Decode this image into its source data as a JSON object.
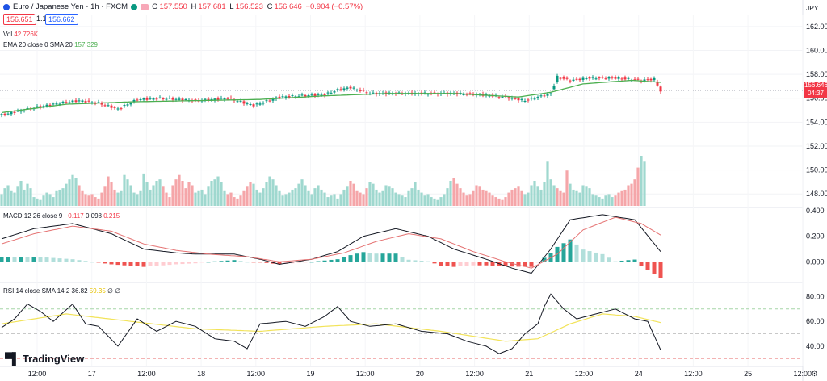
{
  "header": {
    "symbol": "Euro / Japanese Yen · 1h · FXCM",
    "open_label": "O",
    "open": "157.550",
    "high_label": "H",
    "high": "157.681",
    "low_label": "L",
    "low": "156.523",
    "close_label": "C",
    "close": "156.646",
    "change": "−0.904 (−0.57%)",
    "sell_price": "156.651",
    "spread": "1.1",
    "buy_price": "156.662"
  },
  "indicators": {
    "vol_label": "Vol",
    "vol_value": "42.726K",
    "ema_label": "EMA 20 close 0 SMA 20",
    "ema_value": "157.329",
    "macd_label": "MACD 12 26 close 9",
    "macd_v1": "−0.117",
    "macd_v2": "0.098",
    "macd_v3": "0.215",
    "rsi_label": "RSI 14 close SMA 14 2",
    "rsi_v1": "36.82",
    "rsi_v2": "59.35",
    "rsi_v3": "∅ ∅"
  },
  "currency": "JPY",
  "last_price_box": {
    "price": "156.646",
    "countdown": "04:37"
  },
  "brand": "TradingView",
  "colors": {
    "up": "#089981",
    "down": "#f23645",
    "ema": "#4caf50",
    "macd": "#131722",
    "signal": "#e57373",
    "rsi": "#131722",
    "rsi_ma": "#f2e35a"
  },
  "chart_data": {
    "type": "candlestick",
    "title": "Euro / Japanese Yen · 1h · FXCM",
    "price_axis": {
      "ticks": [
        162,
        160,
        158,
        156,
        154,
        152,
        150,
        148
      ],
      "tick_labels": [
        "162.000",
        "160.000",
        "158.000",
        "156.000",
        "154.000",
        "152.000",
        "150.000",
        "148.000"
      ],
      "range": [
        147,
        163
      ]
    },
    "time_axis": {
      "labels": [
        "12:00",
        "17",
        "12:00",
        "18",
        "12:00",
        "19",
        "12:00",
        "20",
        "12:00",
        "21",
        "12:00",
        "24",
        "12:00",
        "25",
        "12:00"
      ]
    },
    "price_anchors": [
      [
        0,
        154.6
      ],
      [
        8,
        155.1
      ],
      [
        18,
        155.6
      ],
      [
        24,
        155.8
      ],
      [
        30,
        155.6
      ],
      [
        36,
        155.1
      ],
      [
        42,
        155.9
      ],
      [
        50,
        156.0
      ],
      [
        60,
        155.8
      ],
      [
        70,
        156.0
      ],
      [
        78,
        155.4
      ],
      [
        86,
        156.1
      ],
      [
        92,
        156.2
      ],
      [
        100,
        156.3
      ],
      [
        104,
        156.7
      ],
      [
        108,
        156.9
      ],
      [
        114,
        156.4
      ],
      [
        126,
        156.4
      ],
      [
        140,
        156.4
      ],
      [
        148,
        156.3
      ],
      [
        156,
        156.1
      ],
      [
        162,
        155.8
      ],
      [
        166,
        156.1
      ],
      [
        170,
        156.4
      ],
      [
        172,
        157.8
      ],
      [
        176,
        157.5
      ],
      [
        182,
        157.7
      ],
      [
        190,
        157.7
      ],
      [
        198,
        157.5
      ],
      [
        202,
        157.6
      ],
      [
        204,
        156.6
      ]
    ],
    "ema20": [
      [
        0,
        154.8
      ],
      [
        20,
        155.5
      ],
      [
        40,
        155.7
      ],
      [
        60,
        155.8
      ],
      [
        80,
        155.9
      ],
      [
        100,
        156.2
      ],
      [
        120,
        156.4
      ],
      [
        140,
        156.4
      ],
      [
        160,
        156.1
      ],
      [
        170,
        156.5
      ],
      [
        180,
        157.2
      ],
      [
        195,
        157.5
      ],
      [
        204,
        157.33
      ]
    ],
    "volume": [
      8,
      12,
      14,
      10,
      9,
      13,
      17,
      11,
      15,
      12,
      6,
      5,
      4,
      7,
      9,
      8,
      6,
      10,
      11,
      12,
      15,
      18,
      21,
      19,
      14,
      10,
      8,
      7,
      8,
      6,
      5,
      9,
      13,
      20,
      16,
      11,
      9,
      10,
      21,
      18,
      14,
      9,
      8,
      10,
      22,
      16,
      11,
      14,
      17,
      18,
      13,
      9,
      6,
      14,
      18,
      21,
      17,
      12,
      16,
      14,
      9,
      10,
      11,
      8,
      13,
      17,
      18,
      20,
      16,
      10,
      8,
      9,
      6,
      5,
      7,
      10,
      13,
      16,
      15,
      11,
      9,
      12,
      16,
      20,
      18,
      14,
      10,
      7,
      8,
      9,
      11,
      12,
      15,
      18,
      14,
      10,
      8,
      12,
      14,
      11,
      9,
      6,
      7,
      8,
      5,
      8,
      11,
      13,
      17,
      15,
      10,
      9,
      8,
      12,
      16,
      15,
      11,
      9,
      10,
      14,
      13,
      12,
      9,
      8,
      7,
      6,
      10,
      12,
      16,
      11,
      9,
      7,
      8,
      6,
      5,
      4,
      6,
      8,
      12,
      17,
      19,
      15,
      12,
      9,
      7,
      8,
      10,
      14,
      13,
      11,
      10,
      9,
      7,
      6,
      5,
      4,
      6,
      9,
      11,
      12,
      13,
      10,
      8,
      9,
      14,
      17,
      13,
      11,
      16,
      30,
      18,
      14,
      12,
      10,
      9,
      24,
      15,
      11,
      10,
      9,
      14,
      13,
      12,
      8,
      7,
      6,
      5,
      7,
      8,
      6,
      7,
      9,
      10,
      11,
      14,
      15,
      18,
      26,
      34,
      30
    ],
    "macd_range": [
      -0.15,
      0.42
    ],
    "macd_ticks": [
      "0.400",
      "0.200",
      "0.000"
    ],
    "macd_line": [
      [
        0,
        0.18
      ],
      [
        10,
        0.26
      ],
      [
        22,
        0.3
      ],
      [
        34,
        0.22
      ],
      [
        44,
        0.1
      ],
      [
        54,
        0.07
      ],
      [
        60,
        0.06
      ],
      [
        72,
        0.06
      ],
      [
        80,
        0.02
      ],
      [
        86,
        -0.02
      ],
      [
        96,
        0.02
      ],
      [
        104,
        0.08
      ],
      [
        112,
        0.2
      ],
      [
        122,
        0.26
      ],
      [
        132,
        0.2
      ],
      [
        140,
        0.1
      ],
      [
        150,
        0.02
      ],
      [
        158,
        -0.05
      ],
      [
        164,
        -0.09
      ],
      [
        170,
        0.1
      ],
      [
        176,
        0.33
      ],
      [
        186,
        0.37
      ],
      [
        196,
        0.33
      ],
      [
        204,
        0.08
      ]
    ],
    "signal_line": [
      [
        0,
        0.14
      ],
      [
        10,
        0.22
      ],
      [
        22,
        0.28
      ],
      [
        34,
        0.24
      ],
      [
        44,
        0.14
      ],
      [
        54,
        0.09
      ],
      [
        64,
        0.06
      ],
      [
        76,
        0.04
      ],
      [
        86,
        0.0
      ],
      [
        96,
        0.02
      ],
      [
        106,
        0.07
      ],
      [
        116,
        0.16
      ],
      [
        126,
        0.22
      ],
      [
        136,
        0.18
      ],
      [
        146,
        0.08
      ],
      [
        156,
        0.0
      ],
      [
        164,
        -0.05
      ],
      [
        172,
        0.06
      ],
      [
        180,
        0.25
      ],
      [
        190,
        0.35
      ],
      [
        198,
        0.3
      ],
      [
        204,
        0.21
      ]
    ],
    "rsi_range": [
      25,
      90
    ],
    "rsi_ticks": [
      "80.00",
      "60.00",
      "40.00"
    ],
    "rsi_bands": [
      70,
      50,
      30
    ],
    "rsi_line": [
      [
        0,
        55
      ],
      [
        4,
        62
      ],
      [
        8,
        74
      ],
      [
        12,
        68
      ],
      [
        16,
        60
      ],
      [
        22,
        74
      ],
      [
        26,
        58
      ],
      [
        30,
        56
      ],
      [
        36,
        40
      ],
      [
        42,
        62
      ],
      [
        48,
        52
      ],
      [
        54,
        60
      ],
      [
        60,
        56
      ],
      [
        66,
        46
      ],
      [
        72,
        44
      ],
      [
        76,
        38
      ],
      [
        80,
        58
      ],
      [
        88,
        60
      ],
      [
        94,
        56
      ],
      [
        100,
        64
      ],
      [
        104,
        72
      ],
      [
        108,
        60
      ],
      [
        114,
        56
      ],
      [
        122,
        58
      ],
      [
        130,
        52
      ],
      [
        138,
        50
      ],
      [
        144,
        44
      ],
      [
        150,
        40
      ],
      [
        154,
        34
      ],
      [
        158,
        38
      ],
      [
        162,
        50
      ],
      [
        166,
        58
      ],
      [
        168,
        72
      ],
      [
        170,
        82
      ],
      [
        174,
        70
      ],
      [
        178,
        62
      ],
      [
        184,
        66
      ],
      [
        190,
        70
      ],
      [
        196,
        62
      ],
      [
        200,
        60
      ],
      [
        204,
        37
      ]
    ],
    "rsi_ma": [
      [
        0,
        58
      ],
      [
        20,
        66
      ],
      [
        40,
        60
      ],
      [
        60,
        54
      ],
      [
        80,
        52
      ],
      [
        100,
        56
      ],
      [
        116,
        58
      ],
      [
        136,
        52
      ],
      [
        156,
        44
      ],
      [
        166,
        46
      ],
      [
        176,
        58
      ],
      [
        186,
        66
      ],
      [
        196,
        64
      ],
      [
        204,
        59
      ]
    ]
  }
}
